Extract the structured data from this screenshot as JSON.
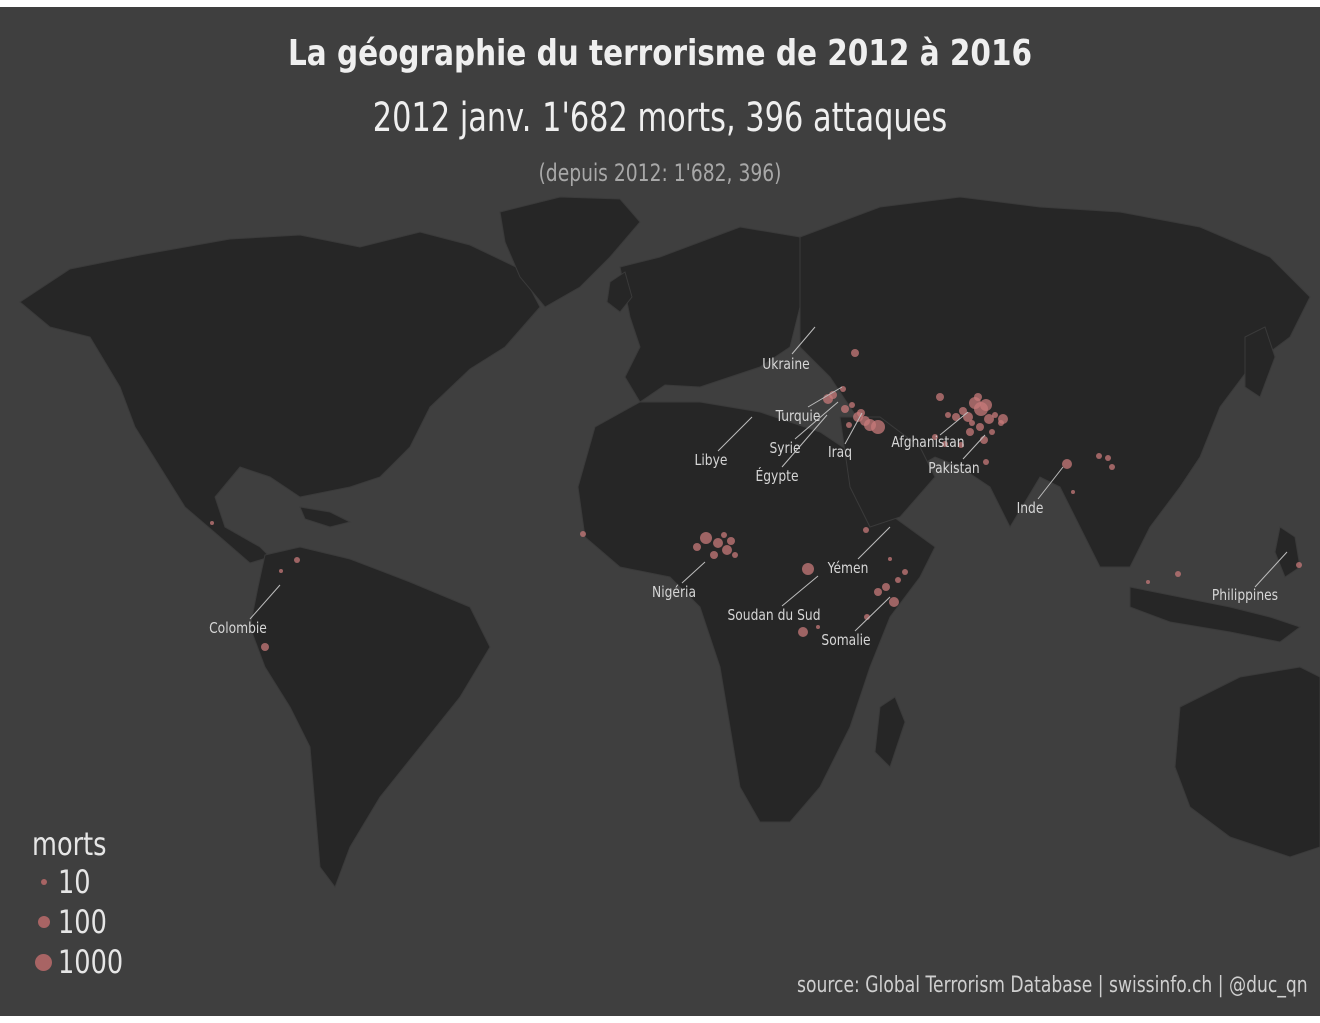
{
  "title": "La géographie du terrorisme de 2012 à 2016",
  "subtitle": {
    "date": "2012 janv.",
    "stats": "1'682 morts, 396 attaques"
  },
  "cumulative": "(depuis 2012: 1'682, 396)",
  "legend": {
    "title": "morts",
    "items": [
      {
        "label": "10",
        "value": 10
      },
      {
        "label": "100",
        "value": 100
      },
      {
        "label": "1000",
        "value": 1000
      }
    ]
  },
  "source": "source: Global Terrorism Database | swissinfo.ch | @duc_qn",
  "colors": {
    "background": "#3f3f3f",
    "land": "#262626",
    "border": "#3a3a3a",
    "bubble": "#c77a7a",
    "text": "#efefef"
  },
  "country_labels": [
    "Ukraine",
    "Turquie",
    "Syrie",
    "Égypte",
    "Iraq",
    "Libye",
    "Afghanistan",
    "Pakistan",
    "Inde",
    "Yémen",
    "Nigéria",
    "Soudan du Sud",
    "Somalie",
    "Colombie",
    "Philippines"
  ]
}
